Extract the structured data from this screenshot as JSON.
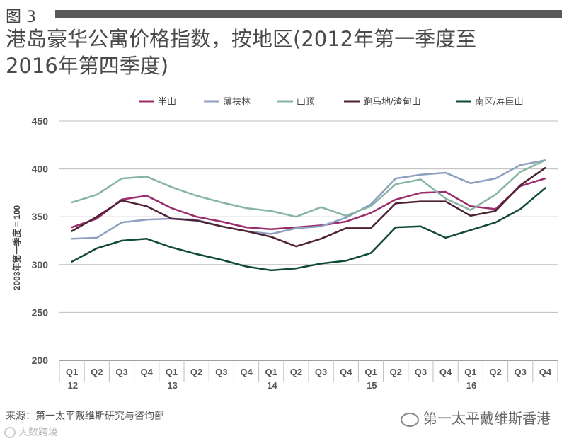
{
  "figure_label": "图 3",
  "title_line1": "港岛豪华公寓价格指数，按地区(2012年第一季度至",
  "title_line2": "2016年第四季度)",
  "source": "来源：第一太平戴维斯研究与咨询部",
  "watermark": "第一太平戴维斯香港",
  "watermark2": "大数跨境",
  "chart_data": {
    "type": "line",
    "title": "港岛豪华公寓价格指数，按地区(2012年第一季度至2016年第四季度)",
    "xlabel": "",
    "ylabel": "2003年第一季度 = 100",
    "ylim": [
      200,
      450
    ],
    "yticks": [
      200,
      250,
      300,
      350,
      400,
      450
    ],
    "legend_position": "top",
    "quarter_labels": [
      "Q1",
      "Q2",
      "Q3",
      "Q4",
      "Q1",
      "Q2",
      "Q3",
      "Q4",
      "Q1",
      "Q2",
      "Q3",
      "Q4",
      "Q1",
      "Q2",
      "Q3",
      "Q4",
      "Q1",
      "Q2",
      "Q3",
      "Q4"
    ],
    "year_labels": [
      "12",
      "",
      "",
      "",
      "13",
      "",
      "",
      "",
      "14",
      "",
      "",
      "",
      "15",
      "",
      "",
      "",
      "16",
      "",
      "",
      ""
    ],
    "series": [
      {
        "name": "半山",
        "color": "#9b2d6a",
        "values": [
          339,
          348,
          368,
          372,
          359,
          350,
          345,
          339,
          337,
          339,
          341,
          345,
          354,
          368,
          375,
          376,
          361,
          358,
          382,
          390
        ]
      },
      {
        "name": "薄扶林",
        "color": "#8e9fc0",
        "values": [
          327,
          328,
          344,
          347,
          348,
          347,
          340,
          335,
          332,
          338,
          340,
          349,
          363,
          390,
          394,
          396,
          385,
          390,
          404,
          409
        ]
      },
      {
        "name": "山顶",
        "color": "#86b5a5",
        "values": [
          365,
          373,
          390,
          392,
          381,
          372,
          365,
          359,
          356,
          350,
          360,
          351,
          361,
          384,
          389,
          369,
          357,
          373,
          397,
          409
        ]
      },
      {
        "name": "跑马地/渣甸山",
        "color": "#4f2137",
        "values": [
          335,
          350,
          367,
          361,
          348,
          346,
          340,
          335,
          329,
          319,
          327,
          338,
          338,
          364,
          366,
          366,
          351,
          356,
          383,
          401
        ]
      },
      {
        "name": "南区/寿臣山",
        "color": "#0f4a35",
        "values": [
          303,
          317,
          325,
          327,
          318,
          311,
          305,
          298,
          294,
          296,
          301,
          304,
          312,
          339,
          340,
          328,
          336,
          344,
          358,
          380
        ]
      }
    ]
  }
}
